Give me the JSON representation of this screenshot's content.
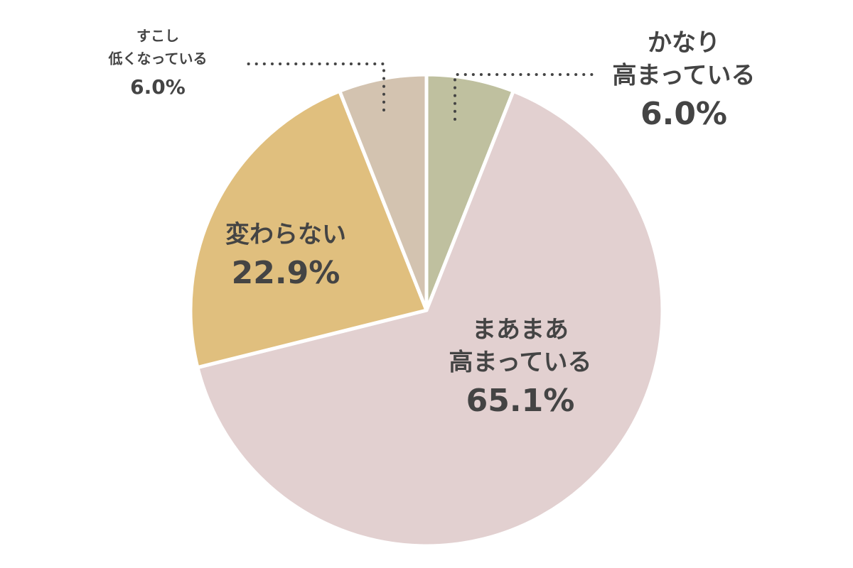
{
  "chart_data": {
    "type": "pie",
    "categories": [
      [
        "かなり",
        "高まっている"
      ],
      [
        "まあまあ",
        "高まっている"
      ],
      [
        "変わらない"
      ],
      [
        "すこし",
        "低くなっている"
      ]
    ],
    "values": [
      6.0,
      65.1,
      22.9,
      6.0
    ],
    "value_labels": [
      "6.0%",
      "65.1%",
      "22.9%",
      "6.0%"
    ],
    "colors": [
      "#bfc09f",
      "#e2d0d0",
      "#e0bf7e",
      "#d3c3b0"
    ]
  }
}
